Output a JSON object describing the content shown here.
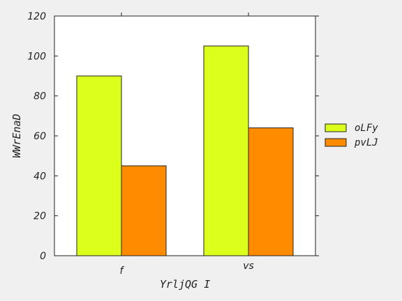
{
  "chart_data": {
    "type": "bar",
    "categories": [
      "f",
      "vs"
    ],
    "series": [
      {
        "name": "oLFy",
        "values": [
          90,
          105
        ],
        "color": "#dcff1c"
      },
      {
        "name": "pvLJ",
        "values": [
          45,
          64
        ],
        "color": "#ff8c00"
      }
    ],
    "xlabel": "YrljQG I",
    "ylabel": "WWrEnaD",
    "ylim": [
      0,
      120
    ],
    "yticks": [
      0,
      20,
      40,
      60,
      80,
      100,
      120
    ],
    "grid": false,
    "legend_position": "right"
  }
}
